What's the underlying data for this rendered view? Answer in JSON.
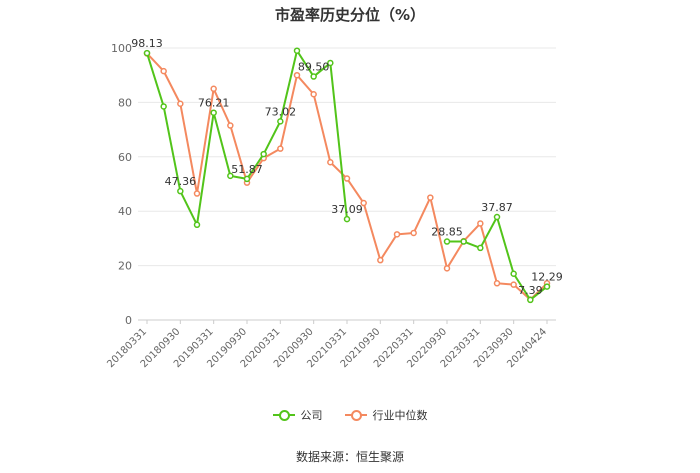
{
  "chart_data": {
    "type": "line",
    "title": "市盈率历史分位（%）",
    "ylim": [
      0,
      100
    ],
    "yticks": [
      0,
      20,
      40,
      60,
      80,
      100
    ],
    "x_tick_labels": [
      "20180331",
      "20180930",
      "20190331",
      "20190930",
      "20200331",
      "20200930",
      "20210331",
      "20210930",
      "20220331",
      "20220930",
      "20230331",
      "20230930",
      "20240424"
    ],
    "x": [
      "20180331",
      "20180630",
      "20180930",
      "20181231",
      "20190331",
      "20190630",
      "20190930",
      "20191231",
      "20200331",
      "20200630",
      "20200930",
      "20201231",
      "20210331",
      "20210630",
      "20210930",
      "20211231",
      "20220331",
      "20220630",
      "20220930",
      "20221231",
      "20230331",
      "20230630",
      "20230930",
      "20231231",
      "20240424"
    ],
    "grid": true,
    "legend_position": "bottom",
    "series": [
      {
        "name": "公司",
        "color": "#52c41a",
        "values": [
          98.13,
          78.5,
          47.36,
          35.0,
          76.21,
          53.0,
          51.87,
          61.0,
          73.02,
          99.0,
          89.5,
          94.5,
          37.09,
          null,
          null,
          null,
          null,
          null,
          28.85,
          28.85,
          26.5,
          37.87,
          17.0,
          7.39,
          12.29
        ],
        "labeled_points": [
          {
            "index": 0,
            "text": "98.13"
          },
          {
            "index": 2,
            "text": "47.36"
          },
          {
            "index": 4,
            "text": "76.21"
          },
          {
            "index": 6,
            "text": "51.87"
          },
          {
            "index": 8,
            "text": "73.02"
          },
          {
            "index": 10,
            "text": "89.50"
          },
          {
            "index": 12,
            "text": "37.09"
          },
          {
            "index": 18,
            "text": "28.85"
          },
          {
            "index": 21,
            "text": "37.87"
          },
          {
            "index": 23,
            "text": "7.39"
          },
          {
            "index": 24,
            "text": "12.29"
          }
        ]
      },
      {
        "name": "行业中位数",
        "color": "#f4895f",
        "values": [
          98.0,
          91.5,
          79.5,
          46.5,
          85.0,
          71.5,
          50.5,
          59.5,
          63.0,
          90.0,
          83.0,
          58.0,
          52.0,
          43.0,
          22.0,
          31.5,
          32.0,
          45.0,
          19.0,
          29.0,
          35.5,
          13.5,
          13.0,
          7.5,
          13.5
        ]
      }
    ]
  },
  "legend": {
    "company_label": "公司",
    "industry_label": "行业中位数"
  },
  "source_text": "数据来源：恒生聚源"
}
